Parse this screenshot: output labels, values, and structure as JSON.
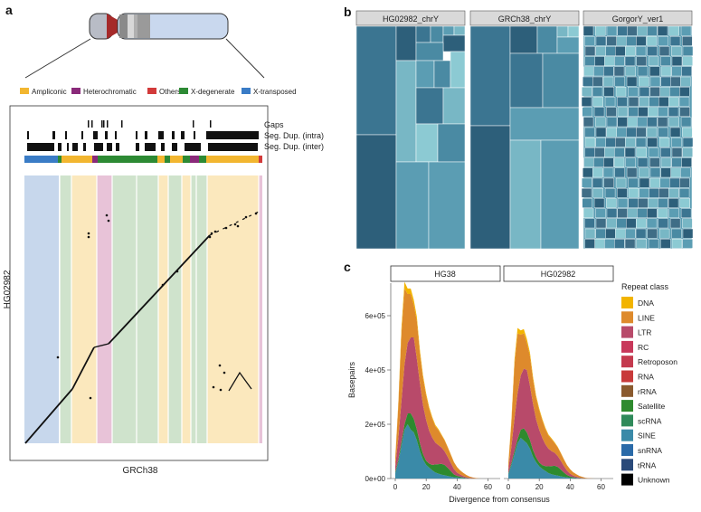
{
  "panels": {
    "a": "a",
    "b": "b",
    "c": "c"
  },
  "panel_a": {
    "legend": [
      {
        "label": "Ampliconic",
        "color": "#f2b630"
      },
      {
        "label": "Heterochromatic",
        "color": "#8a2a7a"
      },
      {
        "label": "Others",
        "color": "#d23a3a"
      },
      {
        "label": "X-degenerate",
        "color": "#2d8a34"
      },
      {
        "label": "X-transposed",
        "color": "#3a7cc6"
      }
    ],
    "tracks": [
      "Gaps",
      "Seg. Dup. (intra)",
      "Seg. Dup. (inter)"
    ],
    "xlabel": "GRCh38",
    "ylabel": "HG02982"
  },
  "panel_b": {
    "strips": [
      "HG02982_chrY",
      "GRCh38_chrY",
      "GorgorY_ver1"
    ]
  },
  "chart_data": {
    "type": "area",
    "title": "",
    "facets": [
      "HG38",
      "HG02982"
    ],
    "xlabel": "Divergence from consensus",
    "ylabel": "Basepairs",
    "x_ticks": [
      0,
      20,
      40,
      60
    ],
    "y_ticks": [
      "0e+00",
      "2e+05",
      "4e+05",
      "6e+05"
    ],
    "xlim": [
      0,
      65
    ],
    "ylim": [
      0,
      700000
    ],
    "legend_title": "Repeat class",
    "legend": [
      {
        "name": "DNA",
        "color": "#f2b400"
      },
      {
        "name": "LINE",
        "color": "#de8a2c"
      },
      {
        "name": "LTR",
        "color": "#b84a6a"
      },
      {
        "name": "RC",
        "color": "#c8385a"
      },
      {
        "name": "Retroposon",
        "color": "#c43a4e"
      },
      {
        "name": "RNA",
        "color": "#c83a3a"
      },
      {
        "name": "rRNA",
        "color": "#8a5a2e"
      },
      {
        "name": "Satellite",
        "color": "#2e8a2e"
      },
      {
        "name": "scRNA",
        "color": "#2f8a5a"
      },
      {
        "name": "SINE",
        "color": "#3a8aa8"
      },
      {
        "name": "snRNA",
        "color": "#2a6aa8"
      },
      {
        "name": "tRNA",
        "color": "#2a4a7a"
      },
      {
        "name": "Unknown",
        "color": "#000000"
      }
    ],
    "series_note": "stacked by divergence bin; totals in basepairs",
    "x": [
      0,
      2,
      4,
      6,
      8,
      10,
      12,
      14,
      16,
      18,
      20,
      22,
      24,
      26,
      28,
      30,
      32,
      34,
      36,
      38,
      40,
      42,
      44,
      46,
      48,
      50,
      52,
      54,
      56
    ],
    "series": [
      {
        "facet": "HG38",
        "name": "SINE",
        "values": [
          20000,
          60000,
          120000,
          180000,
          200000,
          180000,
          170000,
          140000,
          100000,
          70000,
          50000,
          40000,
          30000,
          22000,
          18000,
          14000,
          12000,
          9000,
          7000,
          5000,
          4000,
          3000,
          2000,
          1000,
          500,
          200,
          100,
          0,
          0
        ]
      },
      {
        "facet": "HG38",
        "name": "Satellite",
        "values": [
          5000,
          10000,
          15000,
          20000,
          40000,
          60000,
          50000,
          40000,
          30000,
          20000,
          15000,
          15000,
          20000,
          30000,
          35000,
          40000,
          38000,
          30000,
          20000,
          10000,
          6000,
          4000,
          2000,
          1000,
          500,
          200,
          0,
          0,
          0
        ]
      },
      {
        "facet": "HG38",
        "name": "LTR",
        "values": [
          20000,
          80000,
          150000,
          220000,
          260000,
          280000,
          300000,
          260000,
          220000,
          180000,
          150000,
          120000,
          100000,
          80000,
          70000,
          60000,
          50000,
          40000,
          30000,
          20000,
          12000,
          8000,
          5000,
          3000,
          1500,
          800,
          300,
          0,
          0
        ]
      },
      {
        "facet": "HG38",
        "name": "LINE",
        "values": [
          30000,
          120000,
          250000,
          280000,
          180000,
          160000,
          120000,
          140000,
          110000,
          100000,
          90000,
          80000,
          70000,
          60000,
          55000,
          45000,
          40000,
          35000,
          30000,
          25000,
          20000,
          15000,
          12000,
          8000,
          5000,
          3000,
          1500,
          500,
          0
        ]
      },
      {
        "facet": "HG38",
        "name": "DNA",
        "values": [
          2000,
          10000,
          20000,
          25000,
          20000,
          20000,
          18000,
          15000,
          12000,
          10000,
          8000,
          7000,
          6000,
          5000,
          4000,
          3000,
          2500,
          2000,
          1500,
          1000,
          800,
          500,
          300,
          200,
          100,
          0,
          0,
          0,
          0
        ]
      },
      {
        "facet": "HG02982",
        "name": "SINE",
        "values": [
          15000,
          50000,
          90000,
          130000,
          150000,
          140000,
          130000,
          110000,
          80000,
          60000,
          45000,
          35000,
          28000,
          20000,
          16000,
          13000,
          11000,
          8000,
          6000,
          4000,
          3000,
          2000,
          1500,
          800,
          400,
          100,
          0,
          0,
          0
        ]
      },
      {
        "facet": "HG02982",
        "name": "Satellite",
        "values": [
          4000,
          8000,
          12000,
          15000,
          30000,
          45000,
          40000,
          32000,
          25000,
          18000,
          14000,
          14000,
          18000,
          25000,
          30000,
          34000,
          32000,
          25000,
          16000,
          9000,
          5000,
          3000,
          1500,
          800,
          300,
          100,
          0,
          0,
          0
        ]
      },
      {
        "facet": "HG02982",
        "name": "LTR",
        "values": [
          15000,
          60000,
          120000,
          170000,
          200000,
          220000,
          230000,
          200000,
          170000,
          140000,
          120000,
          100000,
          80000,
          65000,
          55000,
          48000,
          40000,
          32000,
          24000,
          16000,
          10000,
          6000,
          4000,
          2000,
          1000,
          500,
          200,
          0,
          0
        ]
      },
      {
        "facet": "HG02982",
        "name": "LINE",
        "values": [
          20000,
          90000,
          200000,
          220000,
          150000,
          130000,
          100000,
          110000,
          90000,
          80000,
          72000,
          65000,
          56000,
          48000,
          44000,
          36000,
          32000,
          28000,
          24000,
          20000,
          16000,
          12000,
          9000,
          6000,
          4000,
          2000,
          1000,
          300,
          0
        ]
      },
      {
        "facet": "HG02982",
        "name": "DNA",
        "values": [
          1500,
          8000,
          16000,
          20000,
          16000,
          16000,
          14000,
          12000,
          10000,
          8000,
          6500,
          5500,
          5000,
          4000,
          3200,
          2500,
          2000,
          1600,
          1200,
          800,
          600,
          400,
          200,
          100,
          50,
          0,
          0,
          0,
          0
        ]
      }
    ]
  }
}
